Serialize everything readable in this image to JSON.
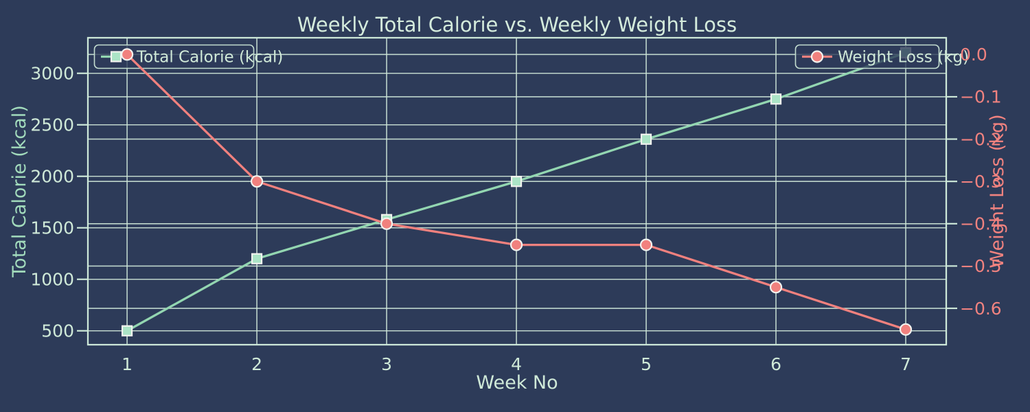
{
  "figure": {
    "background_color": "#2d3b59",
    "title_color": "#d4ebdc",
    "grid_color": "#cfe7d9",
    "spine_color": "#cde8d8"
  },
  "chart_data": {
    "type": "line",
    "title": "Weekly Total Calorie vs. Weekly Weight Loss",
    "xlabel": "Week No",
    "x": [
      1,
      2,
      3,
      4,
      5,
      6,
      7
    ],
    "x_tick_labels": [
      "1",
      "2",
      "3",
      "4",
      "5",
      "6",
      "7"
    ],
    "xlim": [
      0.698,
      7.312
    ],
    "grid": true,
    "legend_position": [
      "upper left",
      "upper right"
    ],
    "series": [
      {
        "name": "Total Calorie (kcal)",
        "axis": "left",
        "values": [
          500,
          1200,
          1580,
          1950,
          2360,
          2750,
          3200
        ],
        "line_color": "#93d6b1",
        "marker": "square",
        "marker_fill": "#abe4c6",
        "marker_edge": "#f2f3ef"
      },
      {
        "name": "Weight Loss (kg)",
        "axis": "right",
        "values": [
          0.0,
          -0.3,
          -0.4,
          -0.45,
          -0.45,
          -0.55,
          -0.65
        ],
        "line_color": "#f1817e",
        "marker": "circle",
        "marker_fill": "#f1817e",
        "marker_edge": "#f2f3ef"
      }
    ],
    "left_axis": {
      "label": "Total Calorie (kcal)",
      "ticks": [
        500,
        1000,
        1500,
        2000,
        2500,
        3000
      ],
      "tick_labels": [
        "500",
        "1000",
        "1500",
        "2000",
        "2500",
        "3000"
      ],
      "lim": [
        365,
        3345
      ],
      "label_color": "#a2dbbc",
      "tick_color": "#cfe9d8"
    },
    "right_axis": {
      "label": "Weight Loss (kg)",
      "ticks": [
        0,
        -0.1,
        -0.2,
        -0.3,
        -0.4,
        -0.5,
        -0.6
      ],
      "tick_labels": [
        "0.0",
        "−0.1",
        "−0.2",
        "−0.3",
        "−0.4",
        "−0.5",
        "−0.6"
      ],
      "lim": [
        -0.686,
        0.0395
      ],
      "label_color": "#f0827f",
      "tick_color": "#f0827f"
    },
    "x_axis": {
      "tick_color": "#cfe9d8",
      "label_color": "#cfe9d8"
    },
    "legend": {
      "text_color": "#d0e9d8",
      "border_color": "#c3ddd0",
      "fill_color": "rgba(45,59,89,0.8)"
    }
  }
}
